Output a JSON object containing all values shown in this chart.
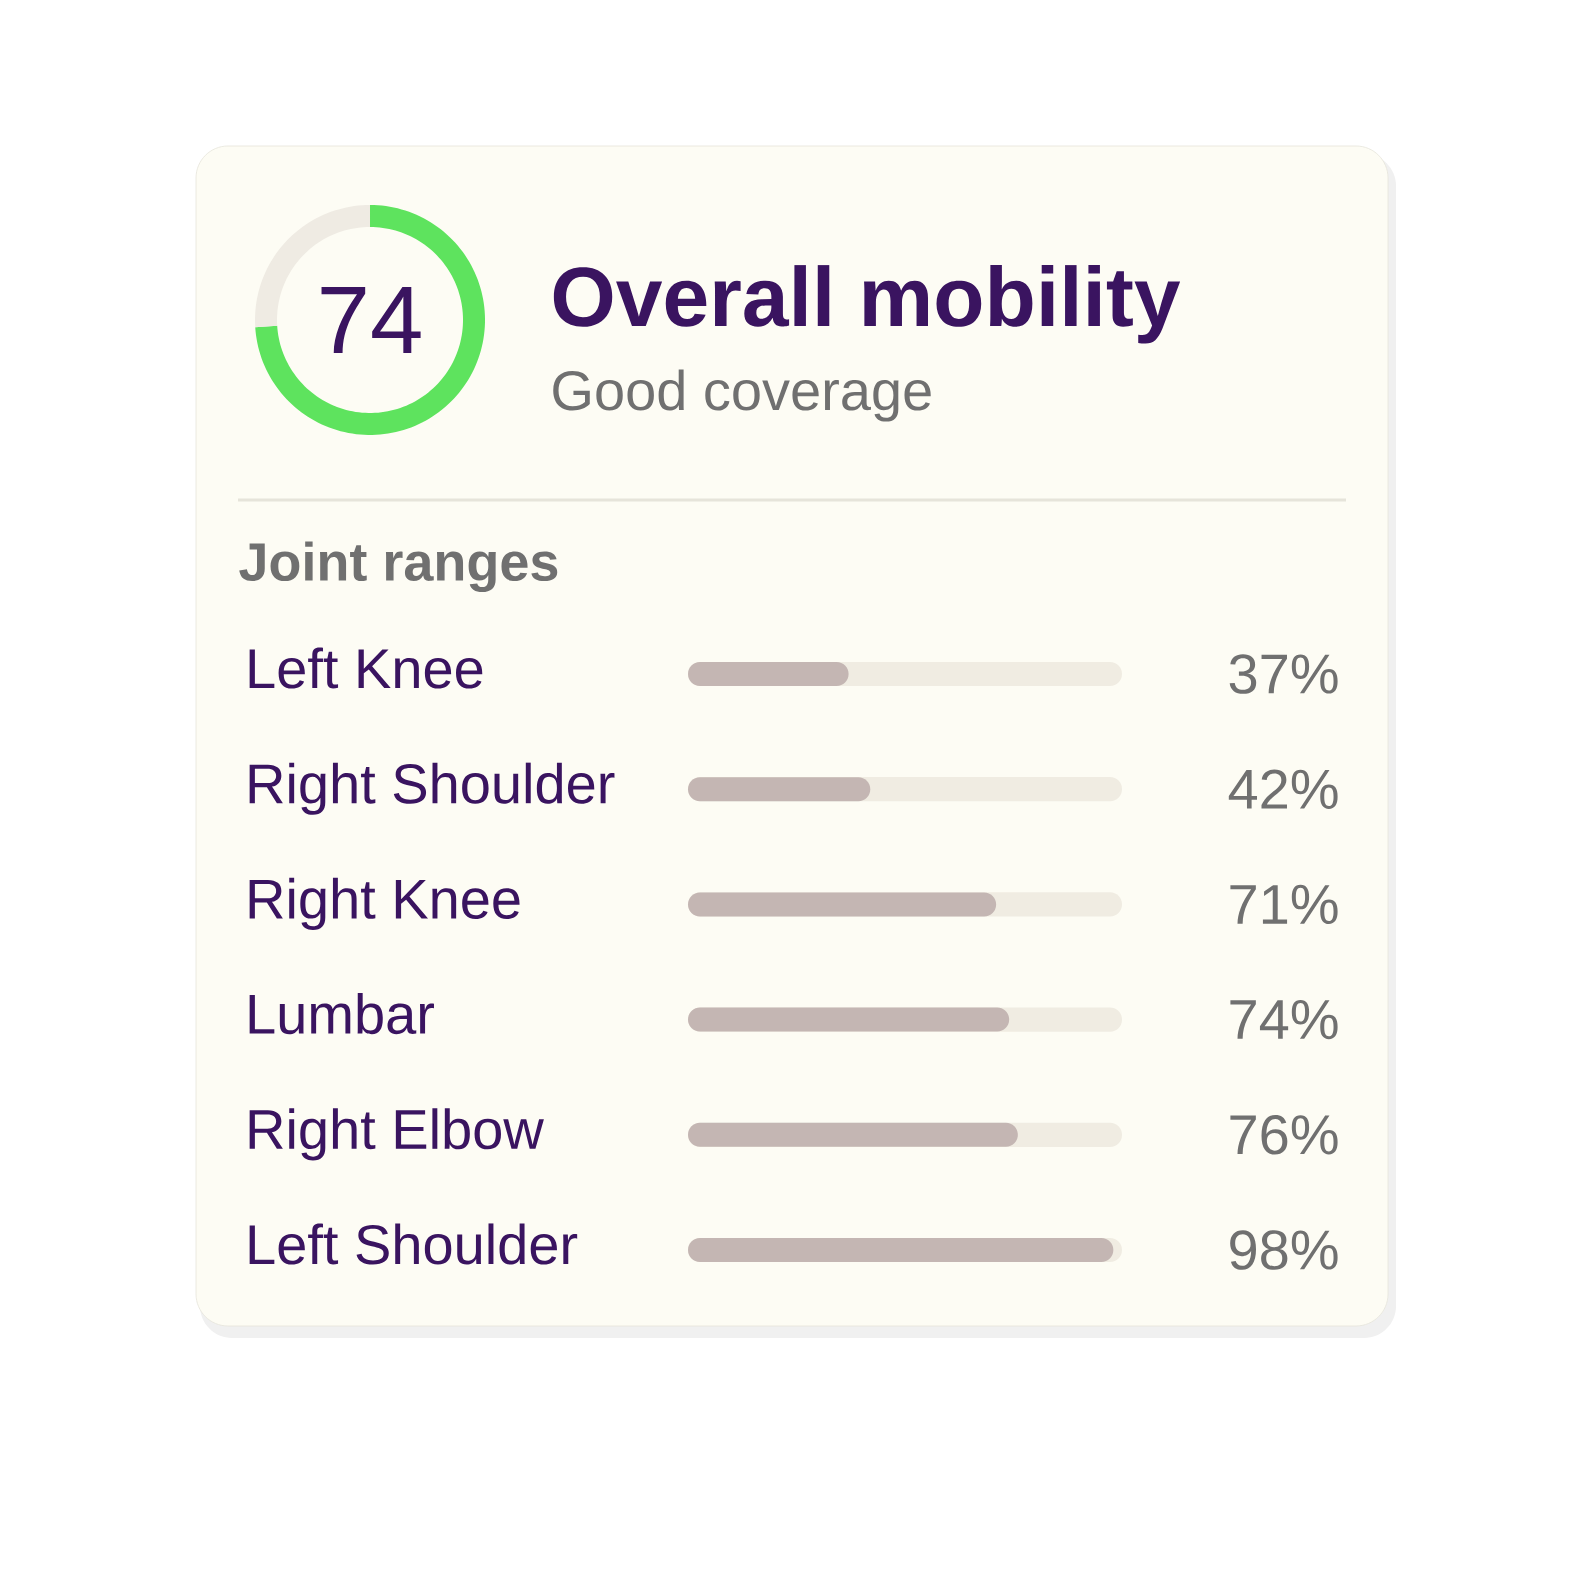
{
  "chart_data": [
    {
      "type": "donut",
      "title": "Overall mobility",
      "subtitle": "Good coverage",
      "categories": [
        null,
        null
      ],
      "values": [
        74,
        26
      ],
      "colors": [
        "#5ee35e",
        "#efebe3"
      ],
      "value_labels": [
        "74",
        null
      ]
    },
    {
      "type": "bar",
      "orientation": "horizontal",
      "title": "Joint ranges",
      "categories": [
        "Left Knee",
        "Right Shoulder",
        "Right Knee",
        "Lumbar",
        "Right Elbow",
        "Left Shoulder"
      ],
      "values": [
        37,
        42,
        71,
        74,
        76,
        98
      ],
      "color": "#c4b6b3",
      "xlim": [
        0,
        100
      ],
      "tick_labels": "y",
      "value_labels": [
        "37%",
        "42%",
        "71%",
        "74%",
        "76%",
        "98%"
      ]
    }
  ]
}
